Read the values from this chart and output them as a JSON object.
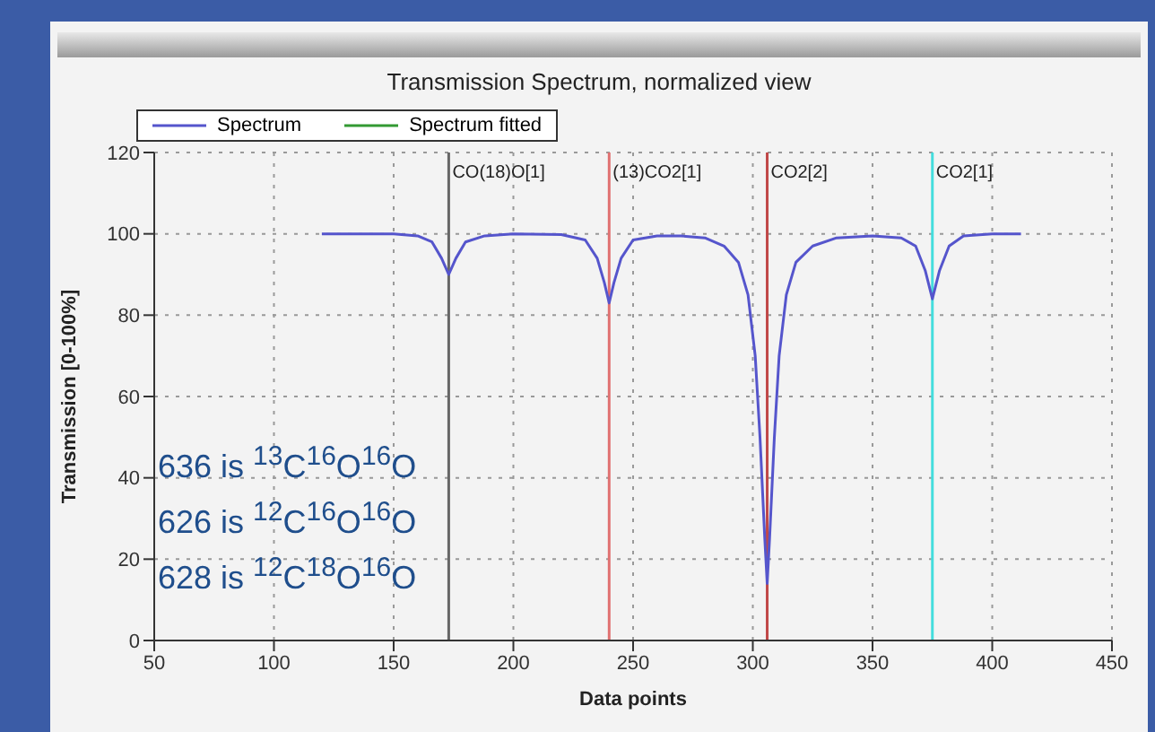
{
  "chart_data": {
    "type": "line",
    "title": "Transmission Spectrum, normalized view",
    "xlabel": "Data points",
    "ylabel": "Transmission [0-100%]",
    "x": [
      120,
      150,
      160,
      166,
      170,
      173,
      176,
      180,
      188,
      200,
      220,
      230,
      235,
      238,
      240,
      242,
      245,
      250,
      260,
      270,
      280,
      288,
      294,
      298,
      301,
      303,
      305,
      306,
      307,
      309,
      311,
      314,
      318,
      325,
      335,
      350,
      362,
      368,
      372,
      375,
      378,
      382,
      388,
      400,
      412
    ],
    "series": [
      {
        "name": "Spectrum",
        "color": "#5555cc",
        "values": [
          100,
          100,
          99.5,
          98,
          94,
          90,
          94,
          98,
          99.5,
          100,
          99.8,
          98.5,
          94,
          88,
          83,
          88,
          94,
          98.5,
          99.5,
          99.5,
          99,
          97,
          93,
          85,
          70,
          50,
          25,
          14,
          25,
          50,
          70,
          85,
          93,
          97,
          99,
          99.5,
          99,
          97,
          91,
          84,
          91,
          97,
          99.5,
          100,
          100
        ]
      },
      {
        "name": "Spectrum fitted",
        "color": "#339933",
        "values": [
          null,
          null,
          null,
          null,
          null,
          null,
          null,
          null,
          null,
          null,
          null,
          null,
          null,
          null,
          null,
          null,
          null,
          null,
          null,
          null,
          null,
          null,
          null,
          null,
          null,
          null,
          null,
          null,
          null,
          null,
          null,
          null,
          null,
          null,
          null,
          null,
          null,
          null,
          null,
          null,
          null,
          null,
          null,
          null,
          null
        ]
      }
    ],
    "xlim": [
      50,
      450
    ],
    "xticks": [
      50,
      100,
      150,
      200,
      250,
      300,
      350,
      400,
      450
    ],
    "ylim": [
      0,
      120
    ],
    "yticks": [
      0,
      20,
      40,
      60,
      80,
      100,
      120
    ],
    "grid": true,
    "legend": "top left",
    "marker": "none",
    "line_style": "solid",
    "ref_lines": [
      {
        "axis": "x",
        "value": 173,
        "label": "CO(18)O[1]",
        "color": "#666666"
      },
      {
        "axis": "x",
        "value": 240,
        "label": "(13)CO2[1]",
        "color": "#e07070"
      },
      {
        "axis": "x",
        "value": 306,
        "label": "CO2[2]",
        "color": "#c04848"
      },
      {
        "axis": "x",
        "value": 375,
        "label": "CO2[1]",
        "color": "#44dddd"
      }
    ],
    "annotations": [
      "636 is $^{13}$C$^{16}$O$^{16}$O",
      "626 is $^{12}$C$^{16}$O$^{16}$O",
      "628 is $^{12}$C$^{18}$O$^{16}$O"
    ]
  }
}
